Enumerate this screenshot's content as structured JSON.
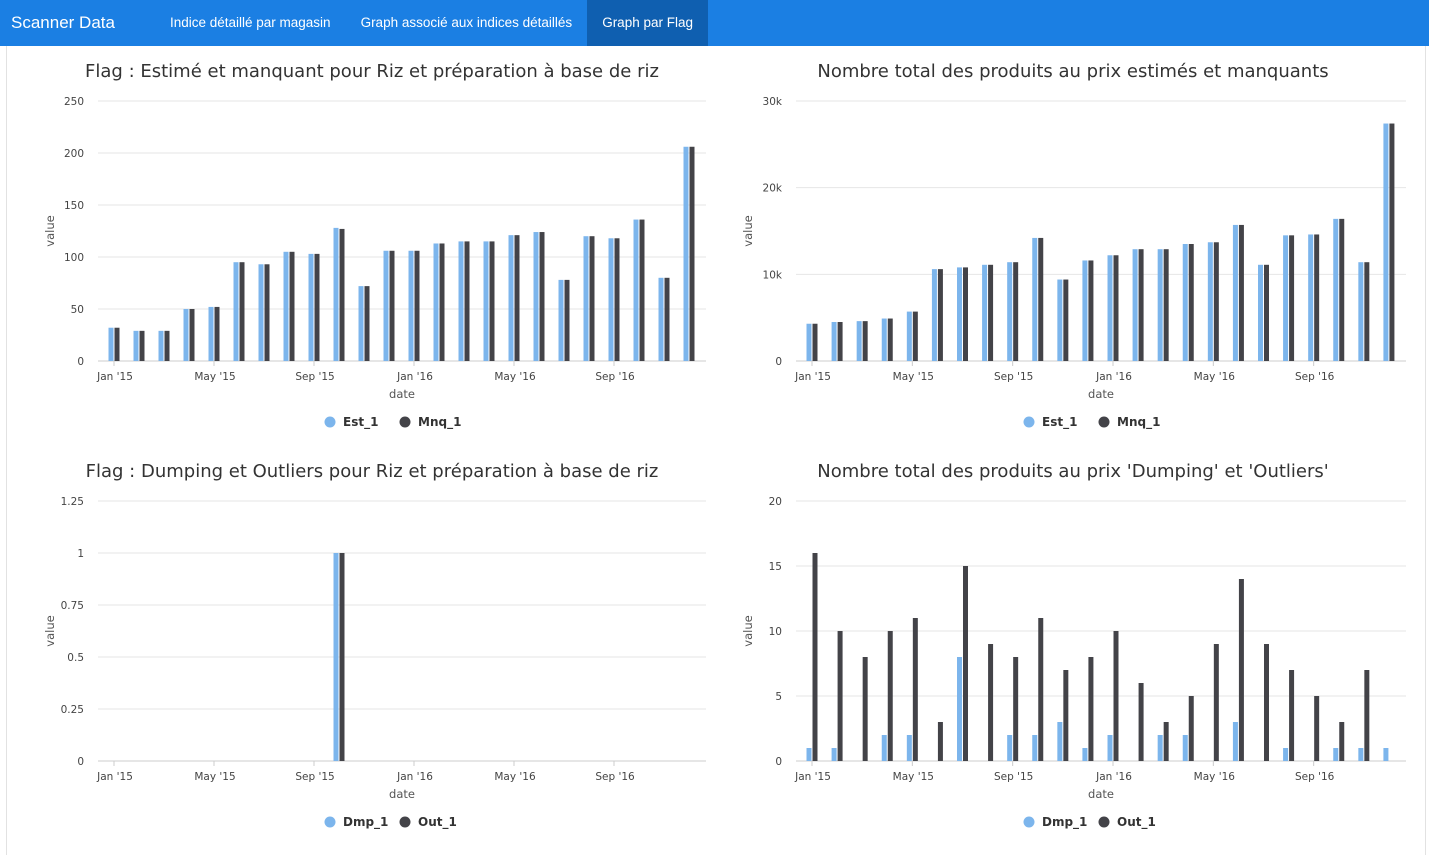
{
  "navbar": {
    "brand": "Scanner Data",
    "tabs": [
      {
        "label": "Indice détaillé par magasin"
      },
      {
        "label": "Graph associé aux indices détaillés"
      },
      {
        "label": "Graph par Flag"
      }
    ],
    "active_tab": 2
  },
  "colors": {
    "navbar": "#1b7fe3",
    "navbar_active": "#0f5fb0",
    "series_a": "#7cb5ec",
    "series_b": "#434348"
  },
  "chart_data": [
    {
      "type": "bar",
      "title": "Flag : Estimé et manquant pour Riz et préparation à base de riz",
      "xlabel": "date",
      "ylabel": "value",
      "x_ticks": [
        "Jan '15",
        "May '15",
        "Sep '15",
        "Jan '16",
        "May '16",
        "Sep '16"
      ],
      "categories": [
        "Jan '15",
        "Feb '15",
        "Mar '15",
        "Apr '15",
        "May '15",
        "Jun '15",
        "Jul '15",
        "Aug '15",
        "Sep '15",
        "Oct '15",
        "Nov '15",
        "Dec '15",
        "Jan '16",
        "Feb '16",
        "Mar '16",
        "Apr '16",
        "May '16",
        "Jun '16",
        "Jul '16",
        "Aug '16",
        "Sep '16",
        "Oct '16",
        "Nov '16",
        "Dec '16"
      ],
      "ylim": [
        0,
        250
      ],
      "y_ticks": [
        "0",
        "50",
        "100",
        "150",
        "200",
        "250"
      ],
      "y_tick_values": [
        0,
        50,
        100,
        150,
        200,
        250
      ],
      "series": [
        {
          "name": "Est_1",
          "values": [
            32,
            29,
            29,
            50,
            52,
            95,
            93,
            105,
            103,
            128,
            72,
            106,
            106,
            113,
            115,
            115,
            121,
            124,
            78,
            120,
            118,
            136,
            80,
            206
          ]
        },
        {
          "name": "Mnq_1",
          "values": [
            32,
            29,
            29,
            50,
            52,
            95,
            93,
            105,
            103,
            127,
            72,
            106,
            106,
            113,
            115,
            115,
            121,
            124,
            78,
            120,
            118,
            136,
            80,
            206
          ]
        }
      ],
      "grid": true,
      "legend": "bottom-center"
    },
    {
      "type": "bar",
      "title": "Nombre total des produits au prix estimés et manquants",
      "xlabel": "date",
      "ylabel": "value",
      "x_ticks": [
        "Jan '15",
        "May '15",
        "Sep '15",
        "Jan '16",
        "May '16",
        "Sep '16"
      ],
      "categories": [
        "Jan '15",
        "Feb '15",
        "Mar '15",
        "Apr '15",
        "May '15",
        "Jun '15",
        "Jul '15",
        "Aug '15",
        "Sep '15",
        "Oct '15",
        "Nov '15",
        "Dec '15",
        "Jan '16",
        "Feb '16",
        "Mar '16",
        "Apr '16",
        "May '16",
        "Jun '16",
        "Jul '16",
        "Aug '16",
        "Sep '16",
        "Oct '16",
        "Nov '16",
        "Dec '16"
      ],
      "ylim": [
        0,
        30000
      ],
      "y_ticks": [
        "0",
        "10k",
        "20k",
        "30k"
      ],
      "y_tick_values": [
        0,
        10000,
        20000,
        30000
      ],
      "series": [
        {
          "name": "Est_1",
          "values": [
            4300,
            4500,
            4600,
            4900,
            5700,
            10600,
            10800,
            11100,
            11400,
            14200,
            9400,
            11600,
            12200,
            12900,
            12900,
            13500,
            13700,
            15700,
            11100,
            14500,
            14600,
            16400,
            11400,
            27400
          ]
        },
        {
          "name": "Mnq_1",
          "values": [
            4300,
            4500,
            4600,
            4900,
            5700,
            10600,
            10800,
            11100,
            11400,
            14200,
            9400,
            11600,
            12200,
            12900,
            12900,
            13500,
            13700,
            15700,
            11100,
            14500,
            14600,
            16400,
            11400,
            27400
          ]
        }
      ],
      "grid": true,
      "legend": "bottom-center"
    },
    {
      "type": "bar",
      "title": "Flag : Dumping et Outliers pour Riz et préparation à base de riz",
      "xlabel": "date",
      "ylabel": "value",
      "x_ticks": [
        "Jan '15",
        "May '15",
        "Sep '15",
        "Jan '16",
        "May '16",
        "Sep '16"
      ],
      "categories": [
        "Jan '15",
        "Feb '15",
        "Mar '15",
        "Apr '15",
        "May '15",
        "Jun '15",
        "Jul '15",
        "Aug '15",
        "Sep '15",
        "Oct '15",
        "Nov '15",
        "Dec '15",
        "Jan '16",
        "Feb '16",
        "Mar '16",
        "Apr '16",
        "May '16",
        "Jun '16",
        "Jul '16",
        "Aug '16",
        "Sep '16",
        "Oct '16",
        "Nov '16",
        "Dec '16"
      ],
      "ylim": [
        0,
        1.25
      ],
      "y_ticks": [
        "0",
        "0.25",
        "0.5",
        "0.75",
        "1",
        "1.25"
      ],
      "y_tick_values": [
        0,
        0.25,
        0.5,
        0.75,
        1,
        1.25
      ],
      "series": [
        {
          "name": "Dmp_1",
          "values": [
            0,
            0,
            0,
            0,
            0,
            0,
            0,
            0,
            0,
            1,
            0,
            0,
            0,
            0,
            0,
            0,
            0,
            0,
            0,
            0,
            0,
            0,
            0,
            0
          ]
        },
        {
          "name": "Out_1",
          "values": [
            0,
            0,
            0,
            0,
            0,
            0,
            0,
            0,
            0,
            1,
            0,
            0,
            0,
            0,
            0,
            0,
            0,
            0,
            0,
            0,
            0,
            0,
            0,
            0
          ]
        }
      ],
      "grid": true,
      "legend": "bottom-center"
    },
    {
      "type": "bar",
      "title": "Nombre total des produits au prix 'Dumping' et 'Outliers'",
      "xlabel": "date",
      "ylabel": "value",
      "x_ticks": [
        "Jan '15",
        "May '15",
        "Sep '15",
        "Jan '16",
        "May '16",
        "Sep '16"
      ],
      "categories": [
        "Jan '15",
        "Feb '15",
        "Mar '15",
        "Apr '15",
        "May '15",
        "Jun '15",
        "Jul '15",
        "Aug '15",
        "Sep '15",
        "Oct '15",
        "Nov '15",
        "Dec '15",
        "Jan '16",
        "Feb '16",
        "Mar '16",
        "Apr '16",
        "May '16",
        "Jun '16",
        "Jul '16",
        "Aug '16",
        "Sep '16",
        "Oct '16",
        "Nov '16",
        "Dec '16"
      ],
      "ylim": [
        0,
        20
      ],
      "y_ticks": [
        "0",
        "5",
        "10",
        "15",
        "20"
      ],
      "y_tick_values": [
        0,
        5,
        10,
        15,
        20
      ],
      "series": [
        {
          "name": "Dmp_1",
          "values": [
            1,
            1,
            0,
            2,
            2,
            0,
            8,
            0,
            2,
            2,
            3,
            1,
            2,
            0,
            2,
            2,
            0,
            3,
            0,
            1,
            0,
            1,
            1,
            1
          ]
        },
        {
          "name": "Out_1",
          "values": [
            16,
            10,
            8,
            10,
            11,
            3,
            15,
            9,
            8,
            11,
            7,
            8,
            10,
            6,
            3,
            5,
            9,
            14,
            9,
            7,
            5,
            3,
            7,
            0
          ]
        }
      ],
      "grid": true,
      "legend": "bottom-center"
    }
  ]
}
